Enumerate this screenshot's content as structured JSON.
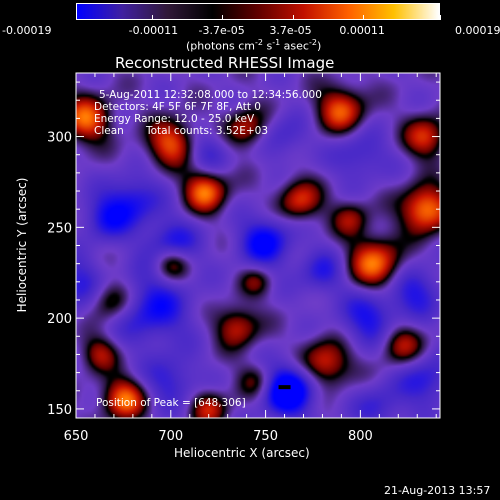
{
  "colorbar": {
    "tick_labels": [
      "-0.00019",
      "-0.00011",
      "-3.7e-05",
      "3.7e-05",
      "0.00011",
      "0.00019"
    ],
    "tick_values": [
      -0.00019,
      -0.00011,
      -3.7e-05,
      3.7e-05,
      0.00011,
      0.00019
    ],
    "range": [
      -0.00019,
      0.00019
    ],
    "unit_main": "(photons cm",
    "unit_exp1": "-2",
    "unit_mid": " s",
    "unit_exp2": "-1",
    "unit_tail": " asec",
    "unit_exp3": "-2",
    "unit_close": ")",
    "colors": [
      "#0000ff",
      "#4020a0",
      "#301838",
      "#000000",
      "#600000",
      "#c01000",
      "#ff6000",
      "#ffc000",
      "#ffffff"
    ]
  },
  "title": "Reconstructed RHESSI Image",
  "annotations": {
    "time_range": "5-Aug-2011 12:32:08.000 to 12:34:56.000",
    "detectors": "Detectors: 4F 5F 6F 7F 8F, Att 0",
    "energy": "Energy Range: 12.0 - 25.0 keV",
    "clean_label": "Clean",
    "total_counts": "Total counts: 3.52E+03",
    "peak": "Position of Peak = [648,306]"
  },
  "footer_date": "21-Aug-2013 13:57",
  "chart_data": {
    "type": "heatmap",
    "title": "Reconstructed RHESSI Image",
    "xlabel": "Heliocentric X (arcsec)",
    "ylabel": "Heliocentric Y (arcsec)",
    "xlim": [
      650,
      842
    ],
    "ylim": [
      145,
      335
    ],
    "x_ticks": [
      650,
      700,
      750,
      800
    ],
    "y_ticks": [
      150,
      200,
      250,
      300
    ],
    "x_tick_labels": [
      "650",
      "700",
      "750",
      "800"
    ],
    "y_tick_labels": [
      "150",
      "200",
      "250",
      "300"
    ],
    "peak_position": [
      648,
      306
    ],
    "min_marker": [
      760,
      162
    ],
    "blobs": [
      {
        "x": 762,
        "y": 160,
        "v": -1.0,
        "s": 10
      },
      {
        "x": 750,
        "y": 242,
        "v": -0.7,
        "s": 10
      },
      {
        "x": 690,
        "y": 205,
        "v": -0.6,
        "s": 14
      },
      {
        "x": 700,
        "y": 240,
        "v": -0.6,
        "s": 10
      },
      {
        "x": 680,
        "y": 265,
        "v": -0.55,
        "s": 10
      },
      {
        "x": 805,
        "y": 200,
        "v": -0.55,
        "s": 11
      },
      {
        "x": 830,
        "y": 215,
        "v": -0.5,
        "s": 10
      },
      {
        "x": 835,
        "y": 165,
        "v": -0.5,
        "s": 10
      },
      {
        "x": 700,
        "y": 165,
        "v": -0.45,
        "s": 10
      },
      {
        "x": 650,
        "y": 218,
        "v": -0.5,
        "s": 10
      },
      {
        "x": 665,
        "y": 255,
        "v": -0.5,
        "s": 9
      },
      {
        "x": 800,
        "y": 290,
        "v": -0.4,
        "s": 10
      },
      {
        "x": 760,
        "y": 300,
        "v": -0.35,
        "s": 9
      },
      {
        "x": 720,
        "y": 292,
        "v": -0.4,
        "s": 8
      },
      {
        "x": 780,
        "y": 225,
        "v": -0.45,
        "s": 9
      },
      {
        "x": 810,
        "y": 150,
        "v": -0.4,
        "s": 9
      },
      {
        "x": 655,
        "y": 310,
        "v": 0.85,
        "s": 9
      },
      {
        "x": 700,
        "y": 297,
        "v": 0.8,
        "s": 9
      },
      {
        "x": 718,
        "y": 270,
        "v": 0.9,
        "s": 8
      },
      {
        "x": 835,
        "y": 260,
        "v": 1.0,
        "s": 9
      },
      {
        "x": 808,
        "y": 230,
        "v": 0.9,
        "s": 10
      },
      {
        "x": 790,
        "y": 315,
        "v": 0.8,
        "s": 9
      },
      {
        "x": 740,
        "y": 305,
        "v": 0.6,
        "s": 8
      },
      {
        "x": 675,
        "y": 155,
        "v": 0.9,
        "s": 8
      },
      {
        "x": 700,
        "y": 230,
        "v": 0.7,
        "s": 7
      },
      {
        "x": 668,
        "y": 210,
        "v": 0.6,
        "s": 8
      },
      {
        "x": 735,
        "y": 195,
        "v": 0.65,
        "s": 8
      },
      {
        "x": 782,
        "y": 175,
        "v": 0.75,
        "s": 9
      },
      {
        "x": 822,
        "y": 185,
        "v": 0.6,
        "s": 8
      },
      {
        "x": 768,
        "y": 265,
        "v": 0.7,
        "s": 8
      },
      {
        "x": 745,
        "y": 165,
        "v": 0.45,
        "s": 7
      },
      {
        "x": 720,
        "y": 150,
        "v": 0.6,
        "s": 7
      },
      {
        "x": 835,
        "y": 300,
        "v": 0.7,
        "s": 8
      },
      {
        "x": 662,
        "y": 180,
        "v": 0.55,
        "s": 7
      },
      {
        "x": 795,
        "y": 255,
        "v": 0.5,
        "s": 7
      },
      {
        "x": 745,
        "y": 220,
        "v": 0.4,
        "s": 6
      }
    ]
  }
}
